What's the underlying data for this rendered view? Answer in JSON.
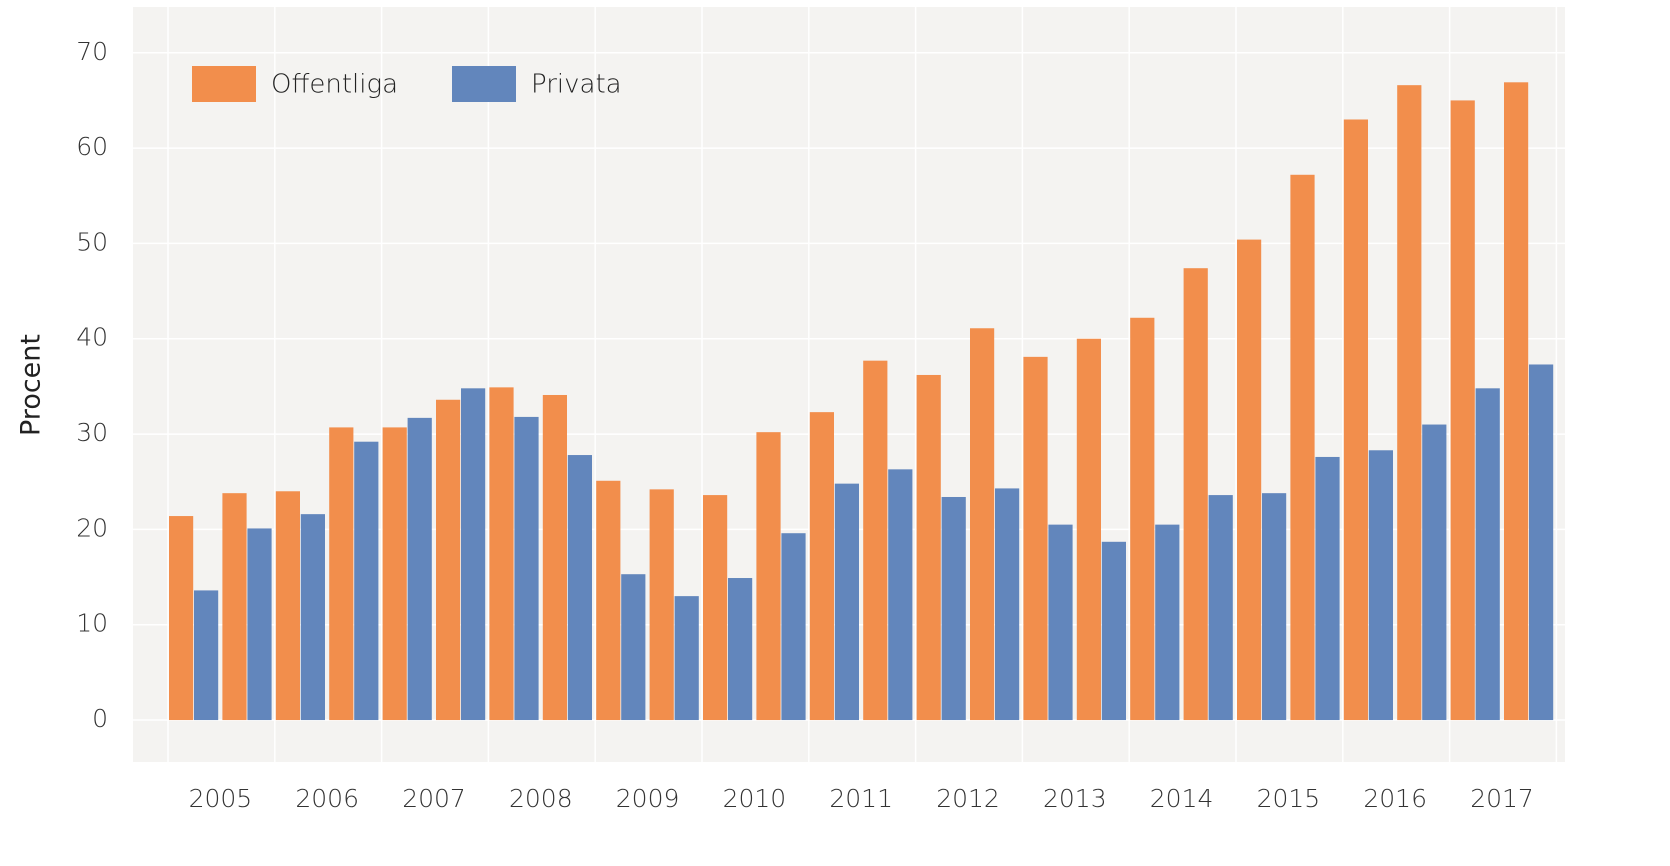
{
  "chart_data": {
    "type": "bar",
    "y_label": "Procent",
    "categories": [
      "2005",
      null,
      "2006",
      null,
      "2007",
      null,
      "2008",
      null,
      "2009",
      null,
      "2010",
      null,
      "2011",
      null,
      "2012",
      null,
      "2013",
      null,
      "2014",
      null,
      "2015",
      null,
      "2016",
      null,
      "2017",
      null
    ],
    "series": [
      {
        "name": "Offentliga",
        "color": "#f28e4c",
        "values": [
          21.4,
          23.8,
          24.0,
          30.7,
          30.7,
          33.6,
          34.9,
          34.1,
          25.1,
          24.2,
          23.6,
          30.2,
          32.3,
          37.7,
          36.2,
          41.1,
          38.1,
          40.0,
          42.2,
          47.4,
          50.4,
          57.2,
          63.0,
          66.6,
          65.0,
          66.9
        ]
      },
      {
        "name": "Privata",
        "color": "#6286bc",
        "values": [
          13.6,
          20.1,
          21.6,
          29.2,
          31.7,
          34.8,
          31.8,
          27.8,
          15.3,
          13.0,
          14.9,
          19.6,
          24.8,
          26.3,
          23.4,
          24.3,
          20.5,
          18.7,
          20.5,
          23.6,
          23.8,
          27.6,
          28.3,
          31.0,
          34.8,
          37.3
        ]
      }
    ],
    "ylim": [
      -4.4,
      74.8
    ],
    "yticks": [
      0,
      10,
      20,
      30,
      40,
      50,
      60,
      70
    ],
    "grid": true,
    "legend": "top-left"
  }
}
